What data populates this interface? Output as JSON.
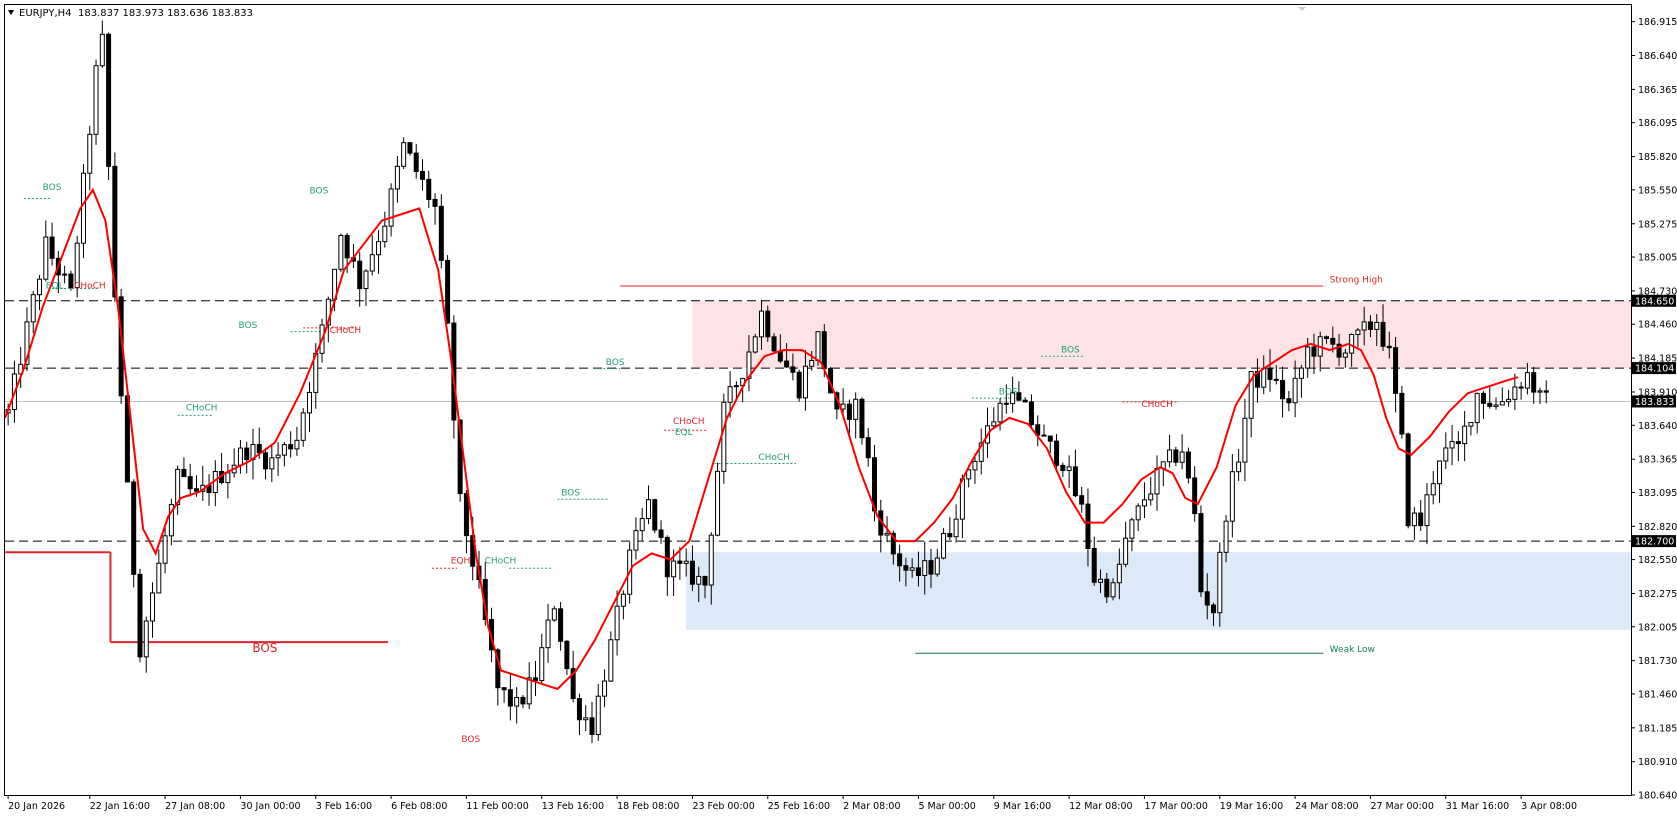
{
  "header": {
    "symbol_timeframe": "EURJPY,H4",
    "ohlc": "183.837 183.973 183.636 183.833"
  },
  "chart_data": {
    "type": "candlestick",
    "symbol": "EURJPY",
    "timeframe": "H4",
    "ylim": [
      180.64,
      187.05
    ],
    "price_ticks": [
      "186.915",
      "186.640",
      "186.365",
      "186.095",
      "185.820",
      "185.550",
      "185.275",
      "185.005",
      "184.730",
      "184.460",
      "184.185",
      "183.910",
      "183.640",
      "183.365",
      "183.095",
      "182.820",
      "182.550",
      "182.275",
      "182.005",
      "181.730",
      "181.460",
      "181.185",
      "180.910",
      "180.640"
    ],
    "x_range": [
      0,
      259
    ],
    "time_ticks": [
      {
        "label": "20 Jan 2026",
        "bar": 0
      },
      {
        "label": "22 Jan 16:00",
        "bar": 13
      },
      {
        "label": "27 Jan 08:00",
        "bar": 25
      },
      {
        "label": "30 Jan 00:00",
        "bar": 37
      },
      {
        "label": "3 Feb 16:00",
        "bar": 49
      },
      {
        "label": "6 Feb 08:00",
        "bar": 61
      },
      {
        "label": "11 Feb 00:00",
        "bar": 73
      },
      {
        "label": "13 Feb 16:00",
        "bar": 85
      },
      {
        "label": "18 Feb 08:00",
        "bar": 97
      },
      {
        "label": "23 Feb 00:00",
        "bar": 109
      },
      {
        "label": "25 Feb 16:00",
        "bar": 121
      },
      {
        "label": "2 Mar 08:00",
        "bar": 133
      },
      {
        "label": "5 Mar 00:00",
        "bar": 145
      },
      {
        "label": "9 Mar 16:00",
        "bar": 157
      },
      {
        "label": "12 Mar 08:00",
        "bar": 169
      },
      {
        "label": "17 Mar 00:00",
        "bar": 181
      },
      {
        "label": "19 Mar 16:00",
        "bar": 193
      },
      {
        "label": "24 Mar 08:00",
        "bar": 205
      },
      {
        "label": "27 Mar 00:00",
        "bar": 217
      },
      {
        "label": "31 Mar 16:00",
        "bar": 229
      },
      {
        "label": "3 Apr 08:00",
        "bar": 241
      }
    ],
    "price_labels": [
      {
        "price": 184.65,
        "text": "184.650"
      },
      {
        "price": 184.104,
        "text": "184.104"
      },
      {
        "price": 183.833,
        "text": "183.833"
      },
      {
        "price": 182.7,
        "text": "182.700"
      }
    ],
    "dashed_levels": [
      184.65,
      184.104,
      182.7
    ],
    "bid_line": 183.833,
    "candle_path": [
      [
        0,
        183.74
      ],
      [
        6,
        185.1
      ],
      [
        10,
        184.7
      ],
      [
        14,
        186.5
      ],
      [
        15,
        186.75
      ],
      [
        17,
        184.7
      ],
      [
        19,
        183.1
      ],
      [
        21,
        181.85
      ],
      [
        24,
        182.5
      ],
      [
        27,
        183.2
      ],
      [
        30,
        183.05
      ],
      [
        34,
        183.25
      ],
      [
        38,
        183.45
      ],
      [
        42,
        183.35
      ],
      [
        46,
        183.55
      ],
      [
        50,
        184.4
      ],
      [
        53,
        185.2
      ],
      [
        56,
        184.8
      ],
      [
        60,
        185.3
      ],
      [
        63,
        185.9
      ],
      [
        66,
        185.6
      ],
      [
        68,
        185.4
      ],
      [
        70,
        184.4
      ],
      [
        72,
        183.0
      ],
      [
        75,
        182.3
      ],
      [
        78,
        181.5
      ],
      [
        81,
        181.35
      ],
      [
        84,
        181.6
      ],
      [
        87,
        182.2
      ],
      [
        90,
        181.4
      ],
      [
        93,
        181.2
      ],
      [
        96,
        181.85
      ],
      [
        99,
        182.55
      ],
      [
        102,
        183.0
      ],
      [
        105,
        182.5
      ],
      [
        108,
        182.45
      ],
      [
        111,
        182.35
      ],
      [
        114,
        183.75
      ],
      [
        117,
        184.1
      ],
      [
        120,
        184.55
      ],
      [
        123,
        184.2
      ],
      [
        126,
        183.95
      ],
      [
        129,
        184.35
      ],
      [
        132,
        183.7
      ],
      [
        135,
        183.8
      ],
      [
        137,
        183.35
      ],
      [
        138,
        182.95
      ],
      [
        141,
        182.6
      ],
      [
        144,
        182.4
      ],
      [
        147,
        182.5
      ],
      [
        150,
        182.8
      ],
      [
        153,
        183.3
      ],
      [
        156,
        183.6
      ],
      [
        159,
        183.9
      ],
      [
        162,
        183.75
      ],
      [
        165,
        183.5
      ],
      [
        168,
        183.35
      ],
      [
        171,
        182.95
      ],
      [
        173,
        182.4
      ],
      [
        176,
        182.3
      ],
      [
        178,
        182.7
      ],
      [
        181,
        183.05
      ],
      [
        184,
        183.3
      ],
      [
        187,
        183.45
      ],
      [
        189,
        182.9
      ],
      [
        190,
        182.3
      ],
      [
        192,
        182.15
      ],
      [
        194,
        182.95
      ],
      [
        196,
        183.4
      ],
      [
        198,
        184.0
      ],
      [
        201,
        184.05
      ],
      [
        204,
        183.8
      ],
      [
        207,
        184.25
      ],
      [
        210,
        184.3
      ],
      [
        213,
        184.25
      ],
      [
        216,
        184.4
      ],
      [
        218,
        184.5
      ],
      [
        220,
        184.2
      ],
      [
        222,
        183.5
      ],
      [
        223,
        182.9
      ],
      [
        225,
        182.85
      ],
      [
        228,
        183.4
      ],
      [
        231,
        183.45
      ],
      [
        234,
        183.9
      ],
      [
        237,
        183.8
      ],
      [
        240,
        183.95
      ],
      [
        242,
        184.05
      ],
      [
        244,
        183.85
      ],
      [
        245,
        183.83
      ]
    ],
    "candle_seed": 12345,
    "ma_line": {
      "color": "#ff0000",
      "points": [
        [
          0,
          183.7
        ],
        [
          3,
          184.1
        ],
        [
          6,
          184.6
        ],
        [
          9,
          185.0
        ],
        [
          12,
          185.4
        ],
        [
          14,
          185.55
        ],
        [
          16,
          185.3
        ],
        [
          18,
          184.6
        ],
        [
          20,
          183.7
        ],
        [
          22,
          182.8
        ],
        [
          24,
          182.6
        ],
        [
          26,
          182.9
        ],
        [
          28,
          183.05
        ],
        [
          31,
          183.1
        ],
        [
          35,
          183.25
        ],
        [
          39,
          183.35
        ],
        [
          43,
          183.5
        ],
        [
          47,
          183.9
        ],
        [
          51,
          184.4
        ],
        [
          54,
          184.9
        ],
        [
          57,
          185.1
        ],
        [
          60,
          185.3
        ],
        [
          63,
          185.35
        ],
        [
          66,
          185.4
        ],
        [
          69,
          184.9
        ],
        [
          71,
          184.2
        ],
        [
          73,
          183.4
        ],
        [
          75,
          182.6
        ],
        [
          77,
          182.0
        ],
        [
          79,
          181.65
        ],
        [
          82,
          181.6
        ],
        [
          85,
          181.55
        ],
        [
          88,
          181.5
        ],
        [
          91,
          181.65
        ],
        [
          94,
          181.9
        ],
        [
          97,
          182.2
        ],
        [
          100,
          182.5
        ],
        [
          103,
          182.6
        ],
        [
          106,
          182.55
        ],
        [
          109,
          182.7
        ],
        [
          112,
          183.2
        ],
        [
          115,
          183.7
        ],
        [
          118,
          184.0
        ],
        [
          121,
          184.2
        ],
        [
          124,
          184.25
        ],
        [
          127,
          184.25
        ],
        [
          130,
          184.15
        ],
        [
          133,
          183.8
        ],
        [
          136,
          183.3
        ],
        [
          139,
          182.9
        ],
        [
          142,
          182.7
        ],
        [
          145,
          182.7
        ],
        [
          148,
          182.85
        ],
        [
          151,
          183.05
        ],
        [
          154,
          183.35
        ],
        [
          157,
          183.6
        ],
        [
          160,
          183.7
        ],
        [
          163,
          183.65
        ],
        [
          166,
          183.45
        ],
        [
          169,
          183.1
        ],
        [
          172,
          182.85
        ],
        [
          175,
          182.85
        ],
        [
          178,
          183.0
        ],
        [
          181,
          183.2
        ],
        [
          184,
          183.3
        ],
        [
          186,
          183.25
        ],
        [
          188,
          183.05
        ],
        [
          190,
          183.0
        ],
        [
          193,
          183.3
        ],
        [
          196,
          183.8
        ],
        [
          199,
          184.05
        ],
        [
          202,
          184.15
        ],
        [
          205,
          184.25
        ],
        [
          208,
          184.3
        ],
        [
          211,
          184.25
        ],
        [
          214,
          184.3
        ],
        [
          216,
          184.25
        ],
        [
          218,
          184.05
        ],
        [
          220,
          183.7
        ],
        [
          222,
          183.45
        ],
        [
          224,
          183.4
        ],
        [
          227,
          183.55
        ],
        [
          230,
          183.75
        ],
        [
          233,
          183.9
        ],
        [
          236,
          183.95
        ],
        [
          239,
          184.0
        ],
        [
          241,
          184.03
        ]
      ]
    },
    "zones": [
      {
        "name": "supply",
        "x0": 109.5,
        "x1": 259,
        "y0": 184.65,
        "y1": 184.104,
        "color": "#fde3e6"
      },
      {
        "name": "demand",
        "x0": 108.5,
        "x1": 259,
        "y0": 182.61,
        "y1": 181.98,
        "color": "#dce9f9"
      }
    ],
    "lines": [
      {
        "x0": 0,
        "x1": 16.8,
        "y": 182.61,
        "color": "#e0262a",
        "width": 2
      },
      {
        "x0": 16.8,
        "x1": 61,
        "y": 181.88,
        "color": "#e0262a",
        "width": 2
      },
      {
        "x0": 98,
        "x1": 210,
        "y": 184.77,
        "color": "#e0262a",
        "width": 1
      },
      {
        "x0": 145,
        "x1": 210,
        "y": 181.79,
        "color": "#0f7f62",
        "width": 1
      }
    ],
    "dotted_segments": [
      {
        "x0": 3,
        "x1": 7.5,
        "y": 185.48,
        "color": "#23a07a"
      },
      {
        "x0": 45.5,
        "x1": 50.5,
        "y": 184.4,
        "color": "#23a07a"
      },
      {
        "x0": 27.5,
        "x1": 33,
        "y": 183.72,
        "color": "#23a07a"
      },
      {
        "x0": 7.5,
        "x1": 15,
        "y": 184.75,
        "color": "#23a07a"
      },
      {
        "x0": 47.5,
        "x1": 56,
        "y": 184.43,
        "color": "#e0262a"
      },
      {
        "x0": 87,
        "x1": 80,
        "y": 182.48,
        "color": "#23a07a"
      },
      {
        "x0": 68,
        "x1": 72,
        "y": 182.48,
        "color": "#e0262a"
      },
      {
        "x0": 88,
        "x1": 96,
        "y": 183.04,
        "color": "#23a07a"
      },
      {
        "x0": 94,
        "x1": 98,
        "y": 184.1,
        "color": "#23a07a"
      },
      {
        "x0": 105,
        "x1": 112,
        "y": 183.6,
        "color": "#e0262a"
      },
      {
        "x0": 113,
        "x1": 126,
        "y": 183.33,
        "color": "#23a07a"
      },
      {
        "x0": 154,
        "x1": 162,
        "y": 183.86,
        "color": "#23a07a"
      },
      {
        "x0": 165,
        "x1": 172,
        "y": 184.2,
        "color": "#23a07a"
      },
      {
        "x0": 178,
        "x1": 187,
        "y": 183.83,
        "color": "#e0262a"
      }
    ],
    "annotations": [
      {
        "text": "BOS",
        "x": 6,
        "y": 185.55,
        "color": "#23a07a",
        "size": 9
      },
      {
        "text": "EQL",
        "x": 6.5,
        "y": 184.75,
        "color": "#23a07a",
        "size": 9
      },
      {
        "text": "CHoCH",
        "x": 11,
        "y": 184.75,
        "color": "#e0262a",
        "size": 9
      },
      {
        "text": "BOS",
        "x": 37.2,
        "y": 184.43,
        "color": "#23a07a",
        "size": 9
      },
      {
        "text": "CHoCH",
        "x": 28.8,
        "y": 183.76,
        "color": "#23a07a",
        "size": 9
      },
      {
        "text": "BOS",
        "x": 48.5,
        "y": 185.52,
        "color": "#23a07a",
        "size": 9
      },
      {
        "text": "CHoCH",
        "x": 51.7,
        "y": 184.39,
        "color": "#e0262a",
        "size": 9
      },
      {
        "text": "BOS",
        "x": 39.4,
        "y": 181.8,
        "color": "#e0262a",
        "size": 12
      },
      {
        "text": "EQH",
        "x": 71,
        "y": 182.52,
        "color": "#e0262a",
        "size": 9
      },
      {
        "text": "CHoCH",
        "x": 76.4,
        "y": 182.52,
        "color": "#23a07a",
        "size": 9
      },
      {
        "text": "BOS",
        "x": 72.7,
        "y": 181.07,
        "color": "#e0262a",
        "size": 9
      },
      {
        "text": "BOS",
        "x": 88.6,
        "y": 183.07,
        "color": "#23a07a",
        "size": 9
      },
      {
        "text": "BOS",
        "x": 95.7,
        "y": 184.13,
        "color": "#23a07a",
        "size": 9
      },
      {
        "text": "CHoCH",
        "x": 106.4,
        "y": 183.65,
        "color": "#e0262a",
        "size": 9
      },
      {
        "text": "EQL",
        "x": 106.7,
        "y": 183.56,
        "color": "#23a07a",
        "size": 9
      },
      {
        "text": "CHoCH",
        "x": 120,
        "y": 183.36,
        "color": "#23a07a",
        "size": 9
      },
      {
        "text": "BOS",
        "x": 158.3,
        "y": 183.89,
        "color": "#23a07a",
        "size": 9
      },
      {
        "text": "BOS",
        "x": 168.2,
        "y": 184.23,
        "color": "#23a07a",
        "size": 9
      },
      {
        "text": "CHoCH",
        "x": 181,
        "y": 183.79,
        "color": "#e0262a",
        "size": 9
      },
      {
        "text": "Strong High",
        "x": 211,
        "y": 184.8,
        "color": "#e0262a",
        "size": 9
      },
      {
        "text": "Weak Low",
        "x": 211,
        "y": 181.8,
        "color": "#0f7f62",
        "size": 9
      }
    ]
  }
}
